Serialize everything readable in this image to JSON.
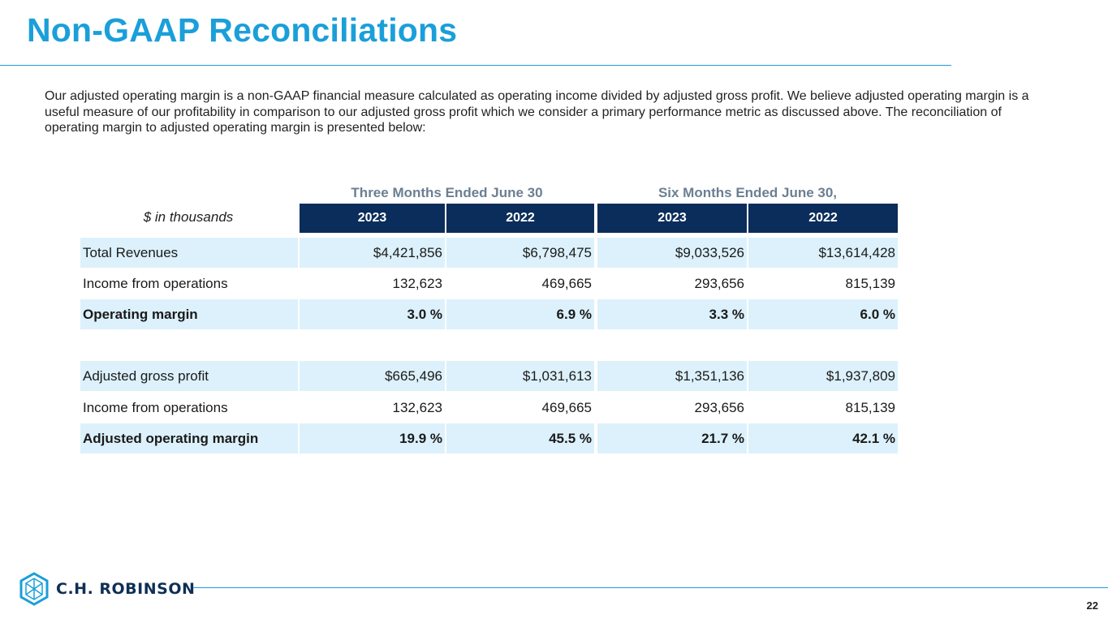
{
  "page": {
    "title": "Non-GAAP Reconciliations",
    "intro": "Our adjusted operating margin is a non-GAAP financial measure calculated as operating income divided by adjusted gross profit. We believe adjusted operating margin is a useful measure of our profitability in comparison to our adjusted gross profit which we consider a primary performance metric as discussed above. The reconciliation of operating margin to adjusted operating margin is presented below:",
    "page_number": "22",
    "logo_text": "C.H. ROBINSON",
    "brand_color": "#1a9fd9"
  },
  "table": {
    "units_label": "$ in thousands",
    "group_headers": [
      "Three Months Ended June 30",
      "Six Months Ended June 30,"
    ],
    "years": [
      "2023",
      "2022",
      "2023",
      "2022"
    ],
    "rows": [
      {
        "label": "Total Revenues",
        "values": [
          "$4,421,856",
          "$6,798,475",
          "$9,033,526",
          "$13,614,428"
        ]
      },
      {
        "label": "Income from operations",
        "values": [
          "132,623",
          "469,665",
          "293,656",
          "815,139"
        ]
      },
      {
        "label": "Operating margin",
        "values": [
          "3.0 %",
          "6.9 %",
          "3.3 %",
          "6.0 %"
        ]
      },
      {
        "label": "Adjusted gross profit",
        "values": [
          "$665,496",
          "$1,031,613",
          "$1,351,136",
          "$1,937,809"
        ]
      },
      {
        "label": "Income from operations",
        "values": [
          "132,623",
          "469,665",
          "293,656",
          "815,139"
        ]
      },
      {
        "label": "Adjusted operating margin",
        "values": [
          "19.9 %",
          "45.5 %",
          "21.7 %",
          "42.1 %"
        ]
      }
    ]
  }
}
